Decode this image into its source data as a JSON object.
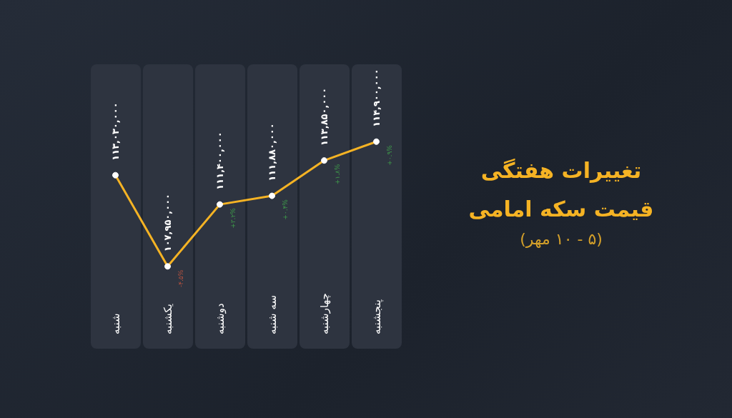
{
  "chart_data": {
    "type": "line",
    "title": "تغییرات هفتگی قیمت سکه امامی",
    "subtitle": "(۵ - ۱۰ مهر)",
    "categories": [
      "شنبه",
      "یکشنبه",
      "دوشنبه",
      "سه شنبه",
      "چهارشنبه",
      "پنجشنبه"
    ],
    "series": [
      {
        "color": "#f5b324",
        "values": [
          113030000,
          107950000,
          111400000,
          111880000,
          113850000,
          114900000
        ],
        "value_labels": [
          "۱۱۳,۰۳۰,۰۰۰",
          "۱۰۷,۹۵۰,۰۰۰",
          "۱۱۱,۴۰۰,۰۰۰",
          "۱۱۱,۸۸۰,۰۰۰",
          "۱۱۳,۸۵۰,۰۰۰",
          "۱۱۴,۹۰۰,۰۰۰"
        ]
      }
    ],
    "tick_labels": "x",
    "grid": false,
    "marker": "circle",
    "line_style": "solid",
    "annotations": [
      {
        "text": "-۴.۵%",
        "x": "یکشنبه",
        "y": 107950000
      },
      {
        "text": "+۳.۲%",
        "x": "دوشنبه",
        "y": 111400000
      },
      {
        "text": "+۰.۴%",
        "x": "سه شنبه",
        "y": 111880000
      },
      {
        "text": "+۱.۸%",
        "x": "چهارشنبه",
        "y": 113850000
      },
      {
        "text": "+۰.۹%",
        "x": "پنجشنبه",
        "y": 114900000
      }
    ]
  }
}
